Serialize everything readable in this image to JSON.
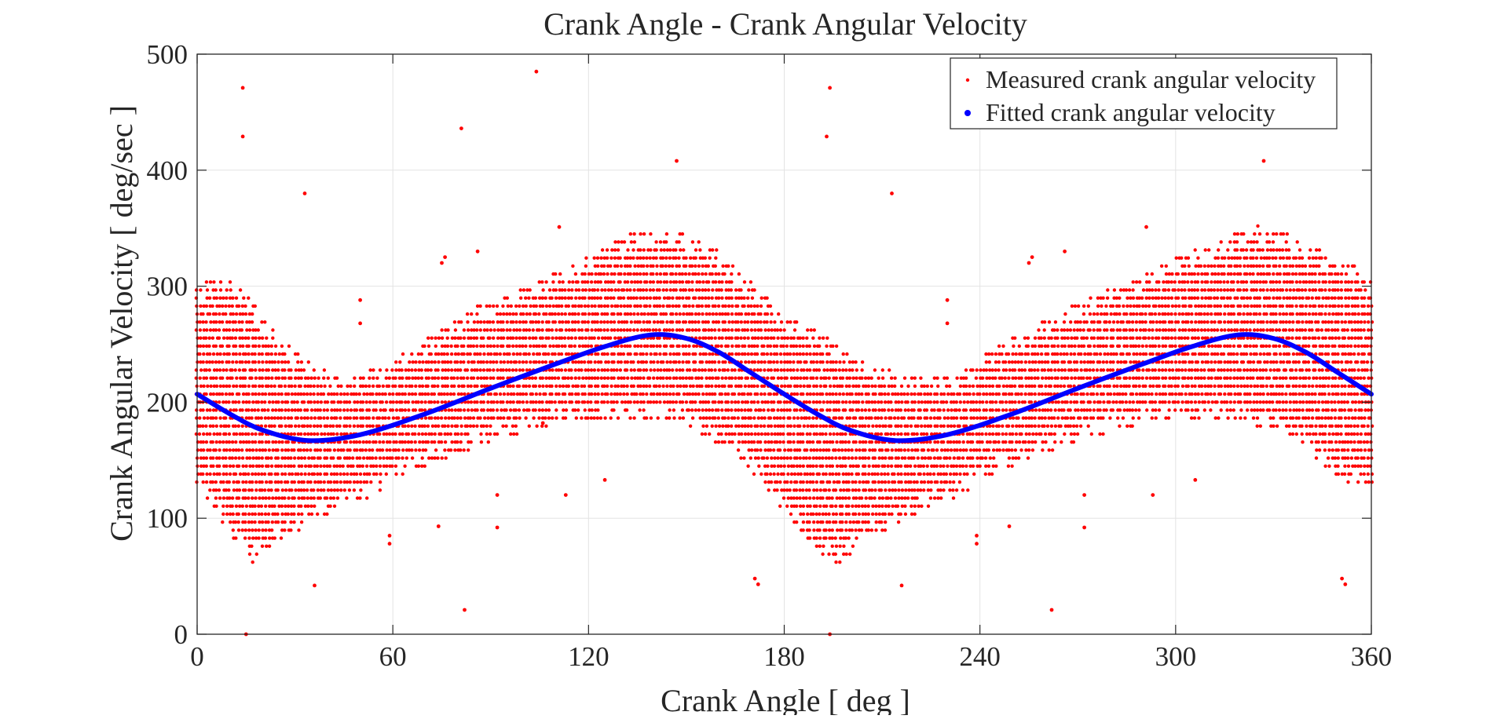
{
  "chart_data": {
    "type": "scatter",
    "title": "Crank Angle - Crank Angular Velocity",
    "xlabel": "Crank Angle [ deg ]",
    "ylabel": "Crank Angular Velocity [ deg/sec ]",
    "xlim": [
      0,
      360
    ],
    "ylim": [
      0,
      500
    ],
    "xticks": [
      0,
      60,
      120,
      180,
      240,
      300,
      360
    ],
    "yticks": [
      0,
      100,
      200,
      300,
      400,
      500
    ],
    "grid": true,
    "legend_position": "top-right",
    "series": [
      {
        "name": "Measured crank angular velocity",
        "kind": "scatter",
        "color": "#ff0000",
        "density_band": {
          "x_step": 1,
          "y_quantum": 6.9,
          "lower": [
            [
              0,
              130
            ],
            [
              10,
              85
            ],
            [
              17,
              60
            ],
            [
              25,
              80
            ],
            [
              35,
              95
            ],
            [
              45,
              110
            ],
            [
              55,
              120
            ],
            [
              62,
              135
            ],
            [
              75,
              150
            ],
            [
              90,
              165
            ],
            [
              105,
              178
            ],
            [
              120,
              185
            ],
            [
              135,
              185
            ],
            [
              150,
              180
            ],
            [
              162,
              160
            ],
            [
              172,
              135
            ],
            [
              180,
              105
            ],
            [
              190,
              70
            ],
            [
              197,
              60
            ],
            [
              205,
              80
            ],
            [
              215,
              95
            ],
            [
              225,
              110
            ],
            [
              235,
              120
            ],
            [
              242,
              135
            ],
            [
              255,
              150
            ],
            [
              270,
              165
            ],
            [
              285,
              178
            ],
            [
              300,
              185
            ],
            [
              315,
              185
            ],
            [
              330,
              175
            ],
            [
              345,
              145
            ],
            [
              352,
              130
            ],
            [
              360,
              125
            ]
          ],
          "upper": [
            [
              0,
              300
            ],
            [
              8,
              310
            ],
            [
              15,
              295
            ],
            [
              25,
              255
            ],
            [
              38,
              228
            ],
            [
              50,
              225
            ],
            [
              60,
              238
            ],
            [
              72,
              258
            ],
            [
              85,
              282
            ],
            [
              100,
              300
            ],
            [
              115,
              320
            ],
            [
              130,
              342
            ],
            [
              140,
              352
            ],
            [
              150,
              345
            ],
            [
              160,
              330
            ],
            [
              172,
              300
            ],
            [
              180,
              275
            ],
            [
              190,
              262
            ],
            [
              200,
              245
            ],
            [
              210,
              230
            ],
            [
              222,
              222
            ],
            [
              235,
              228
            ],
            [
              245,
              250
            ],
            [
              258,
              270
            ],
            [
              270,
              286
            ],
            [
              285,
              305
            ],
            [
              300,
              325
            ],
            [
              315,
              342
            ],
            [
              325,
              352
            ],
            [
              335,
              345
            ],
            [
              345,
              330
            ],
            [
              355,
              320
            ],
            [
              360,
              305
            ]
          ]
        },
        "outliers": [
          [
            14,
            471
          ],
          [
            14,
            429
          ],
          [
            15,
            0
          ],
          [
            33,
            380
          ],
          [
            36,
            42
          ],
          [
            50,
            268
          ],
          [
            50,
            288
          ],
          [
            59,
            85
          ],
          [
            59,
            78
          ],
          [
            74,
            93
          ],
          [
            75,
            320
          ],
          [
            76,
            325
          ],
          [
            81,
            436
          ],
          [
            82,
            21
          ],
          [
            86,
            330
          ],
          [
            92,
            120
          ],
          [
            92,
            92
          ],
          [
            104,
            485
          ],
          [
            106,
            182
          ],
          [
            111,
            351
          ],
          [
            113,
            120
          ],
          [
            125,
            133
          ],
          [
            147,
            408
          ],
          [
            171,
            48
          ],
          [
            172,
            43
          ],
          [
            193,
            429
          ],
          [
            194,
            471
          ],
          [
            194,
            0
          ],
          [
            213,
            380
          ],
          [
            216,
            42
          ],
          [
            230,
            268
          ],
          [
            230,
            288
          ],
          [
            239,
            85
          ],
          [
            239,
            78
          ],
          [
            249,
            93
          ],
          [
            255,
            320
          ],
          [
            256,
            325
          ],
          [
            262,
            21
          ],
          [
            266,
            330
          ],
          [
            272,
            120
          ],
          [
            272,
            92
          ],
          [
            291,
            351
          ],
          [
            293,
            120
          ],
          [
            306,
            133
          ],
          [
            327,
            408
          ],
          [
            351,
            48
          ],
          [
            352,
            43
          ]
        ]
      },
      {
        "name": "Fitted crank angular velocity",
        "kind": "line",
        "color": "#0000ff",
        "x": [
          0,
          10,
          20,
          34,
          50,
          70,
          90,
          110,
          125,
          139,
          150,
          160,
          170,
          180,
          190,
          200,
          214,
          230,
          250,
          270,
          290,
          305,
          319,
          330,
          340,
          350,
          360
        ],
        "y": [
          207,
          190,
          176,
          167,
          172,
          190,
          212,
          233,
          248,
          258,
          255,
          243,
          225,
          207,
          190,
          176,
          167,
          172,
          190,
          212,
          233,
          248,
          258,
          255,
          243,
          225,
          207
        ]
      }
    ]
  }
}
